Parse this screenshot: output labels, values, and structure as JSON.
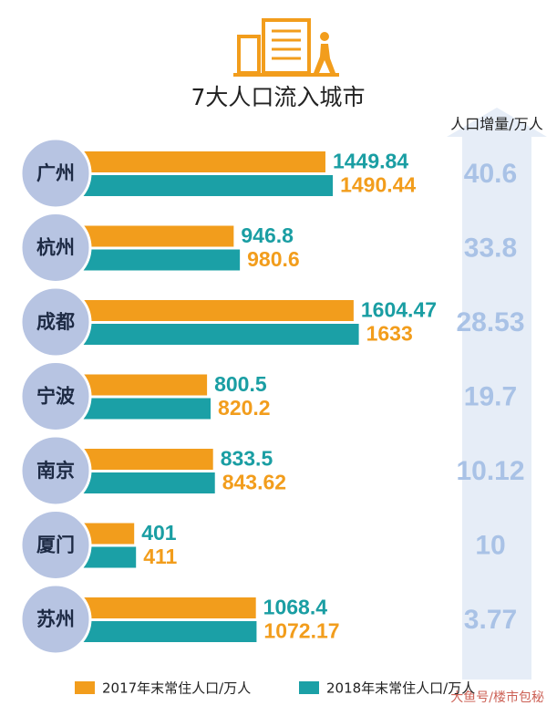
{
  "chart_data": {
    "type": "bar",
    "orientation": "horizontal",
    "title": "7大人口流入城市",
    "categories": [
      "广州",
      "杭州",
      "成都",
      "宁波",
      "南京",
      "厦门",
      "苏州"
    ],
    "series": [
      {
        "name": "2017年末常住人口/万人",
        "color": "#f29d1c",
        "label_color": "#1a9ea3",
        "values": [
          1449.84,
          946.8,
          1604.47,
          800.5,
          833.5,
          401,
          1068.4
        ]
      },
      {
        "name": "2018年末常住人口/万人",
        "color": "#1ba0a6",
        "label_color": "#f29d1c",
        "values": [
          1490.44,
          980.6,
          1633,
          820.2,
          843.62,
          411,
          1072.17
        ]
      }
    ],
    "increase": {
      "title": "人口增量/万人",
      "values": [
        40.6,
        33.8,
        28.53,
        19.7,
        10.12,
        10,
        3.77
      ]
    },
    "watermark": "大鱼号/楼市包秘"
  }
}
